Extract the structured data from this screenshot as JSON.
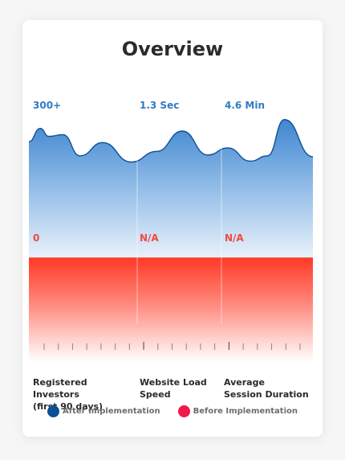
{
  "title": "Overview",
  "colors": {
    "after": "#0d4f95",
    "after_light": "#5a9fe0",
    "before": "#f0174a",
    "before_fill": "#ff3b2a",
    "divider": "#dcdcdc"
  },
  "chart_data": {
    "type": "area",
    "title": "Overview",
    "categories": [
      "Registered Investors (first 90 days)",
      "Website Load Speed",
      "Average Session Duration"
    ],
    "category_lines": [
      [
        "Registered Investors",
        "(first 90 days)"
      ],
      [
        "Website Load",
        "Speed"
      ],
      [
        "Average",
        "Session Duration"
      ]
    ],
    "series": [
      {
        "name": "After Implementation",
        "color": "#0d4f95",
        "labels": [
          "300+",
          "1.3 Sec",
          "4.6 Min"
        ],
        "curve": [
          [
            0,
            0.58
          ],
          [
            0.04,
            0.73
          ],
          [
            0.07,
            0.64
          ],
          [
            0.12,
            0.66
          ],
          [
            0.18,
            0.42
          ],
          [
            0.26,
            0.57
          ],
          [
            0.36,
            0.35
          ],
          [
            0.45,
            0.47
          ],
          [
            0.54,
            0.7
          ],
          [
            0.63,
            0.43
          ],
          [
            0.7,
            0.51
          ],
          [
            0.78,
            0.36
          ],
          [
            0.84,
            0.42
          ],
          [
            0.9,
            0.83
          ],
          [
            1.0,
            0.41
          ]
        ]
      },
      {
        "name": "Before Implementation",
        "color": "#f0174a",
        "labels": [
          "0",
          "N/A",
          "N/A"
        ]
      }
    ],
    "legend_position": "bottom",
    "grid": false
  },
  "legend": [
    {
      "label": "After Implementation",
      "color": "#0d4f95"
    },
    {
      "label": "Before Implementation",
      "color": "#f0174a"
    }
  ]
}
